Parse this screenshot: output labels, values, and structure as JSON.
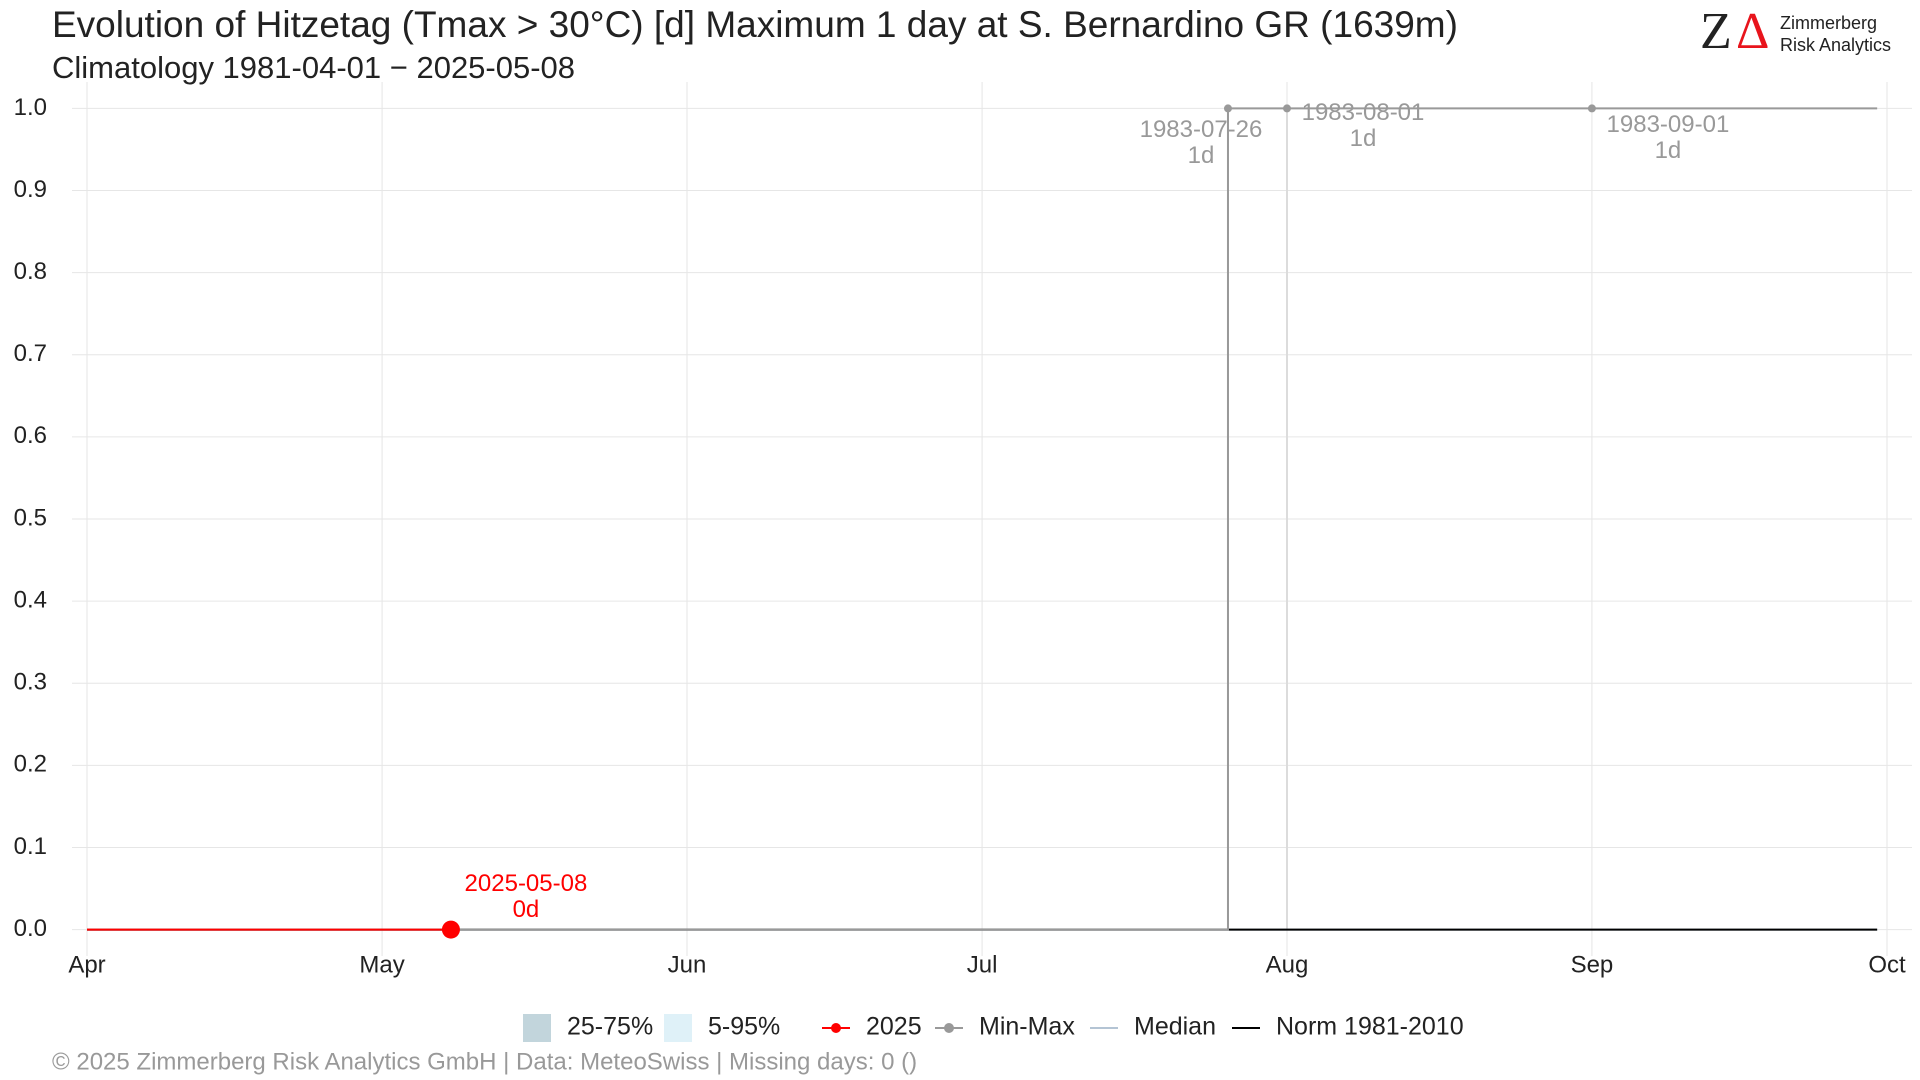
{
  "chart_data": {
    "type": "line",
    "title": "Evolution of Hitzetag (Tmax > 30°C) [d] Maximum 1 day at S. Bernardino  GR (1639m)",
    "subtitle": "Climatology 1981-04-01 − 2025-05-08",
    "xlim": [
      "2025-04-01",
      "2025-10-01"
    ],
    "xticks": [
      {
        "value": "2025-04-01",
        "label": "Apr"
      },
      {
        "value": "2025-05-01",
        "label": "May"
      },
      {
        "value": "2025-06-01",
        "label": "Jun"
      },
      {
        "value": "2025-07-01",
        "label": "Jul"
      },
      {
        "value": "2025-08-01",
        "label": "Aug"
      },
      {
        "value": "2025-09-01",
        "label": "Sep"
      },
      {
        "value": "2025-10-01",
        "label": "Oct"
      }
    ],
    "ylim": [
      -0.02,
      1.02
    ],
    "yticks": [
      {
        "value": 0,
        "label": "0.0"
      },
      0.1,
      0.2,
      0.3,
      0.4,
      0.5,
      0.6,
      0.7,
      0.8,
      0.9,
      {
        "value": 1,
        "label": "1.0"
      }
    ],
    "grid": true,
    "bands": [
      {
        "name": "25-75%",
        "color": "#c2d5dc"
      },
      {
        "name": "5-95%",
        "color": "#dff1f8"
      }
    ],
    "series": [
      {
        "name": "Median",
        "color": "#b4c4d4",
        "x": [
          "2025-04-01",
          "2025-09-30"
        ],
        "values": [
          0,
          0
        ]
      },
      {
        "name": "Norm 1981-2010",
        "color": "#000000",
        "x": [
          "2025-04-01",
          "2025-09-30"
        ],
        "values": [
          0,
          0
        ]
      },
      {
        "name": "Min-Max",
        "color": "#999999",
        "x": [
          "2025-04-01",
          "2025-07-26",
          "2025-07-26",
          "2025-09-30"
        ],
        "values": [
          0,
          0,
          1,
          1
        ]
      },
      {
        "name": "2025",
        "color": "#ff0000",
        "x": [
          "2025-04-01",
          "2025-05-08"
        ],
        "values": [
          0,
          0
        ]
      }
    ],
    "annotations": [
      {
        "x": "2025-07-26",
        "value": 1,
        "label": "1983-07-26",
        "value_label": "1d",
        "color": "#999999"
      },
      {
        "x": "2025-08-01",
        "value": 1,
        "label": "1983-08-01",
        "value_label": "1d",
        "color": "#999999"
      },
      {
        "x": "2025-09-01",
        "value": 1,
        "label": "1983-09-01",
        "value_label": "1d",
        "color": "#999999"
      },
      {
        "x": "2025-05-08",
        "value": 0,
        "label": "2025-05-08",
        "value_label": "0d",
        "color": "#ff0000"
      }
    ],
    "footer": "©  2025 Zimmerberg Risk Analytics GmbH | Data: MeteoSwiss | Missing days: 0 ()"
  },
  "logo": {
    "letters": [
      "Z",
      "Δ"
    ],
    "lines": [
      "Zimmerberg",
      "Risk Analytics"
    ]
  }
}
